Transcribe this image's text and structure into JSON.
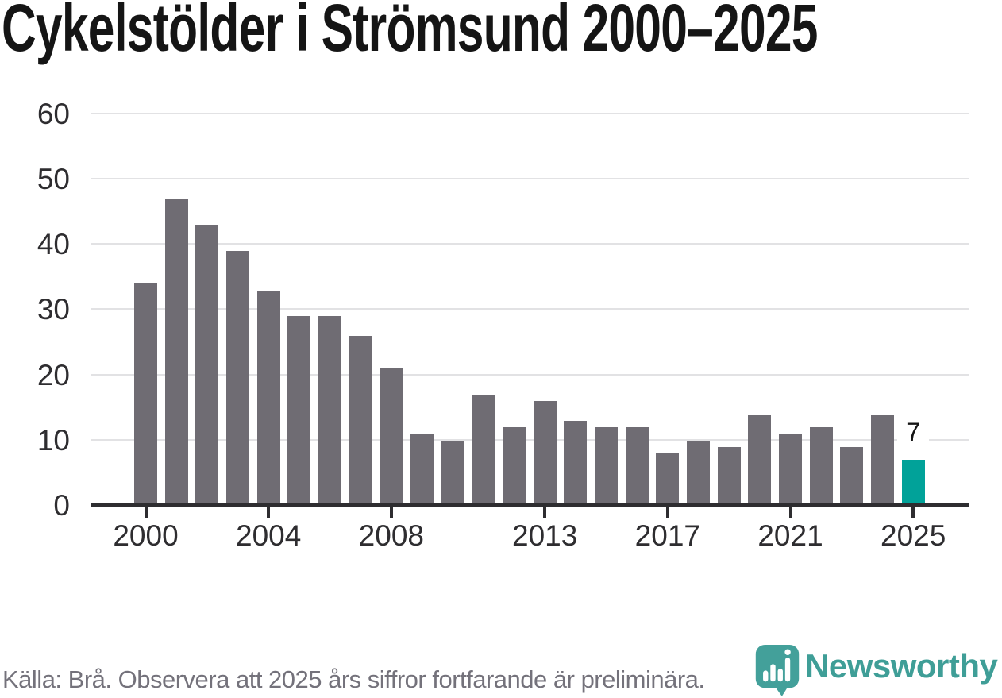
{
  "title": "Cykelstölder i Strömsund 2000–2025",
  "footer": {
    "source_note": "Källa: Brå. Observera att 2025 års siffror fortfarande är preliminära."
  },
  "brand": {
    "name": "Newsworthy",
    "icon": "newsworthy-bubble-barchart-icon",
    "text_color": "#3f9e97",
    "icon_color": "#43a09a"
  },
  "chart_data": {
    "type": "bar",
    "title": "Cykelstölder i Strömsund 2000–2025",
    "categories": [
      2000,
      2001,
      2002,
      2003,
      2004,
      2005,
      2006,
      2007,
      2008,
      2009,
      2010,
      2011,
      2012,
      2013,
      2014,
      2015,
      2016,
      2017,
      2018,
      2019,
      2020,
      2021,
      2022,
      2023,
      2024,
      2025
    ],
    "values": [
      34,
      47,
      43,
      39,
      33,
      29,
      29,
      26,
      21,
      11,
      10,
      17,
      12,
      16,
      13,
      12,
      12,
      8,
      10,
      9,
      14,
      11,
      12,
      9,
      14,
      7
    ],
    "xlabel": "",
    "ylabel": "",
    "ylim": [
      0,
      60
    ],
    "yticks": [
      0,
      10,
      20,
      30,
      40,
      50,
      60
    ],
    "xtick_labels": [
      2000,
      2004,
      2008,
      2013,
      2017,
      2021,
      2025
    ],
    "grid": "horizontal",
    "legend": "none",
    "bar_color": "#6f6c73",
    "grid_color": "#e2e2e4",
    "axis_color": "#2e2d30",
    "highlight": {
      "index": 25,
      "year": 2025,
      "value": 7,
      "color": "#01a299",
      "label": "7"
    }
  }
}
